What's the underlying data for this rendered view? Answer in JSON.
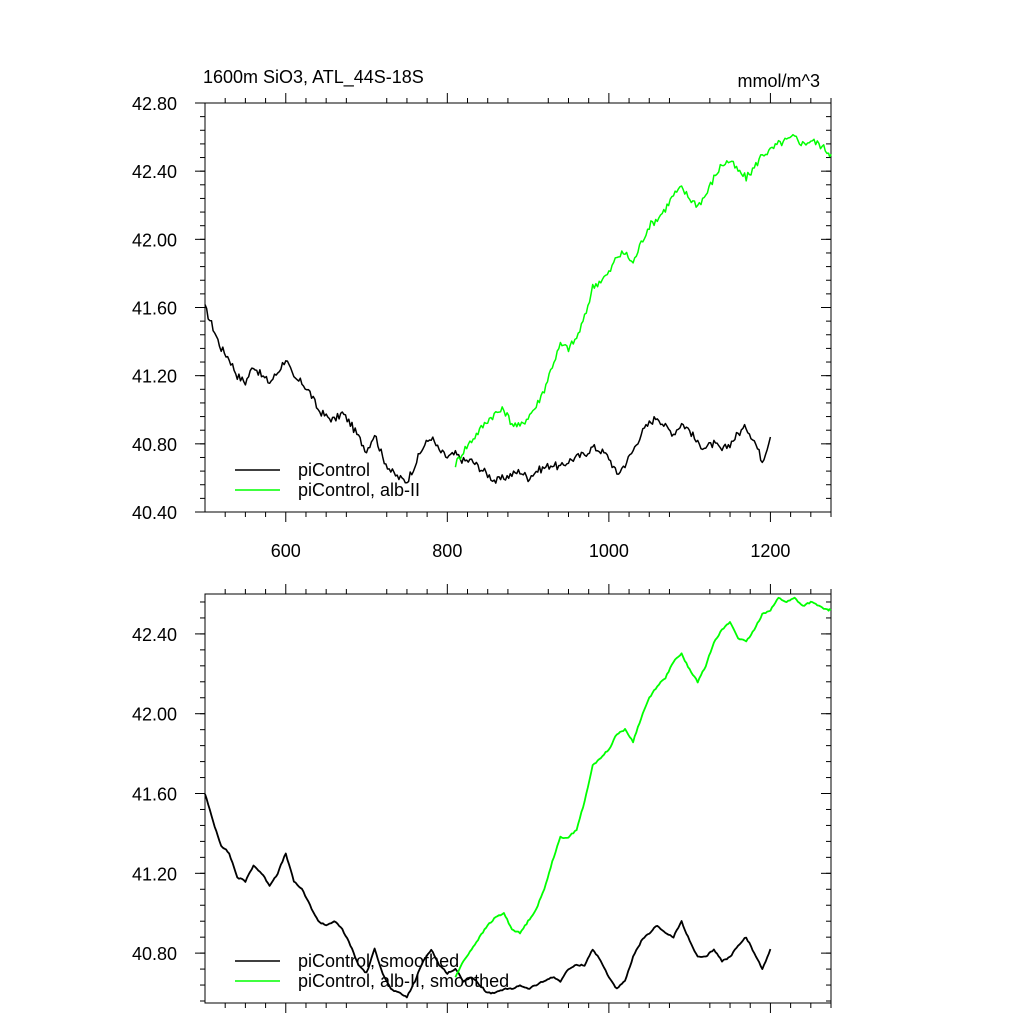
{
  "chart_data": [
    {
      "type": "line",
      "title": "1600m SiO3, ATL_44S-18S",
      "units": "mmol/m^3",
      "xlim": [
        500,
        1275
      ],
      "ylim": [
        40.4,
        42.8
      ],
      "x_ticks": [
        600,
        800,
        1000,
        1200
      ],
      "x_tick_labels": [
        "600",
        "800",
        "1000",
        "1200"
      ],
      "y_ticks": [
        40.4,
        40.8,
        41.2,
        41.6,
        42.0,
        42.4,
        42.8
      ],
      "y_tick_labels": [
        "40.40",
        "40.80",
        "41.20",
        "41.60",
        "42.00",
        "42.40",
        "42.80"
      ],
      "grid": false,
      "legend": "bottom-left",
      "series": [
        {
          "name": "piControl",
          "color": "#000000",
          "x": [
            500,
            510,
            520,
            530,
            540,
            550,
            560,
            570,
            580,
            590,
            600,
            610,
            620,
            630,
            640,
            650,
            660,
            670,
            680,
            690,
            700,
            710,
            720,
            730,
            740,
            750,
            760,
            770,
            780,
            790,
            800,
            810,
            820,
            830,
            840,
            850,
            860,
            870,
            880,
            890,
            900,
            910,
            920,
            930,
            940,
            950,
            960,
            970,
            980,
            990,
            1000,
            1010,
            1020,
            1030,
            1040,
            1050,
            1060,
            1070,
            1080,
            1090,
            1100,
            1110,
            1120,
            1130,
            1140,
            1150,
            1160,
            1170,
            1180,
            1190,
            1200
          ],
          "values": [
            41.6,
            41.48,
            41.36,
            41.3,
            41.2,
            41.16,
            41.26,
            41.2,
            41.16,
            41.22,
            41.3,
            41.18,
            41.16,
            41.1,
            41.0,
            40.96,
            40.94,
            40.98,
            40.92,
            40.84,
            40.76,
            40.86,
            40.72,
            40.64,
            40.6,
            40.58,
            40.68,
            40.78,
            40.84,
            40.76,
            40.72,
            40.74,
            40.7,
            40.7,
            40.66,
            40.62,
            40.58,
            40.6,
            40.62,
            40.64,
            40.6,
            40.64,
            40.66,
            40.68,
            40.66,
            40.7,
            40.72,
            40.74,
            40.78,
            40.76,
            40.72,
            40.62,
            40.68,
            40.76,
            40.86,
            40.92,
            40.96,
            40.9,
            40.86,
            40.92,
            40.88,
            40.8,
            40.78,
            40.8,
            40.76,
            40.8,
            40.86,
            40.9,
            40.82,
            40.7,
            40.84
          ]
        },
        {
          "name": "piControl, alb-II",
          "color": "#00ff00",
          "x": [
            810,
            820,
            830,
            840,
            850,
            860,
            870,
            880,
            890,
            900,
            910,
            920,
            930,
            940,
            950,
            960,
            970,
            980,
            990,
            1000,
            1010,
            1020,
            1030,
            1040,
            1050,
            1060,
            1070,
            1080,
            1090,
            1100,
            1110,
            1120,
            1130,
            1140,
            1150,
            1160,
            1170,
            1180,
            1190,
            1200,
            1210,
            1220,
            1230,
            1240,
            1250,
            1260,
            1270,
            1275
          ],
          "values": [
            40.68,
            40.76,
            40.82,
            40.88,
            40.94,
            40.98,
            41.0,
            40.92,
            40.9,
            40.96,
            41.02,
            41.12,
            41.26,
            41.38,
            41.36,
            41.42,
            41.54,
            41.72,
            41.76,
            41.8,
            41.9,
            41.92,
            41.86,
            41.98,
            42.08,
            42.12,
            42.18,
            42.26,
            42.3,
            42.24,
            42.2,
            42.26,
            42.36,
            42.44,
            42.46,
            42.4,
            42.36,
            42.42,
            42.5,
            42.52,
            42.56,
            42.58,
            42.6,
            42.56,
            42.58,
            42.56,
            42.52,
            42.5
          ]
        }
      ]
    },
    {
      "type": "line",
      "xlim": [
        500,
        1275
      ],
      "ylim": [
        40.55,
        42.6
      ],
      "x_ticks": [
        600,
        800,
        1000,
        1200
      ],
      "y_ticks": [
        40.8,
        41.2,
        41.6,
        42.0,
        42.4
      ],
      "y_tick_labels": [
        "40.80",
        "41.20",
        "41.60",
        "42.00",
        "42.40"
      ],
      "grid": false,
      "legend": "bottom-left",
      "series": [
        {
          "name": "piControl, smoothed",
          "color": "#000000",
          "x": [
            500,
            510,
            520,
            530,
            540,
            550,
            560,
            570,
            580,
            590,
            600,
            610,
            620,
            630,
            640,
            650,
            660,
            670,
            680,
            690,
            700,
            710,
            720,
            730,
            740,
            750,
            760,
            770,
            780,
            790,
            800,
            810,
            820,
            830,
            840,
            850,
            860,
            870,
            880,
            890,
            900,
            910,
            920,
            930,
            940,
            950,
            960,
            970,
            980,
            990,
            1000,
            1010,
            1020,
            1030,
            1040,
            1050,
            1060,
            1070,
            1080,
            1090,
            1100,
            1110,
            1120,
            1130,
            1140,
            1150,
            1160,
            1170,
            1180,
            1190,
            1200
          ],
          "values": [
            41.6,
            41.46,
            41.34,
            41.3,
            41.18,
            41.16,
            41.24,
            41.2,
            41.14,
            41.2,
            41.3,
            41.16,
            41.12,
            41.04,
            40.96,
            40.94,
            40.96,
            40.92,
            40.84,
            40.74,
            40.7,
            40.82,
            40.7,
            40.62,
            40.6,
            40.58,
            40.66,
            40.76,
            40.82,
            40.74,
            40.7,
            40.72,
            40.66,
            40.68,
            40.64,
            40.6,
            40.6,
            40.62,
            40.62,
            40.64,
            40.62,
            40.64,
            40.66,
            40.68,
            40.66,
            40.72,
            40.74,
            40.74,
            40.82,
            40.76,
            40.68,
            40.62,
            40.66,
            40.78,
            40.86,
            40.9,
            40.94,
            40.9,
            40.88,
            40.96,
            40.86,
            40.78,
            40.78,
            40.82,
            40.76,
            40.78,
            40.84,
            40.88,
            40.8,
            40.72,
            40.82
          ]
        },
        {
          "name": "piControl, alb-II, smoothed",
          "color": "#00ff00",
          "x": [
            810,
            820,
            830,
            840,
            850,
            860,
            870,
            880,
            890,
            900,
            910,
            920,
            930,
            940,
            950,
            960,
            970,
            980,
            990,
            1000,
            1010,
            1020,
            1030,
            1040,
            1050,
            1060,
            1070,
            1080,
            1090,
            1100,
            1110,
            1120,
            1130,
            1140,
            1150,
            1160,
            1170,
            1180,
            1190,
            1200,
            1210,
            1220,
            1230,
            1240,
            1250,
            1260,
            1270,
            1275
          ],
          "values": [
            40.68,
            40.76,
            40.82,
            40.88,
            40.94,
            40.98,
            41.0,
            40.92,
            40.9,
            40.96,
            41.02,
            41.12,
            41.26,
            41.38,
            41.38,
            41.42,
            41.56,
            41.74,
            41.78,
            41.82,
            41.9,
            41.92,
            41.86,
            41.98,
            42.08,
            42.14,
            42.18,
            42.26,
            42.3,
            42.22,
            42.16,
            42.24,
            42.36,
            42.42,
            42.46,
            42.38,
            42.36,
            42.42,
            42.5,
            42.52,
            42.58,
            42.56,
            42.58,
            42.54,
            42.56,
            42.54,
            42.52,
            42.52
          ]
        }
      ]
    }
  ]
}
